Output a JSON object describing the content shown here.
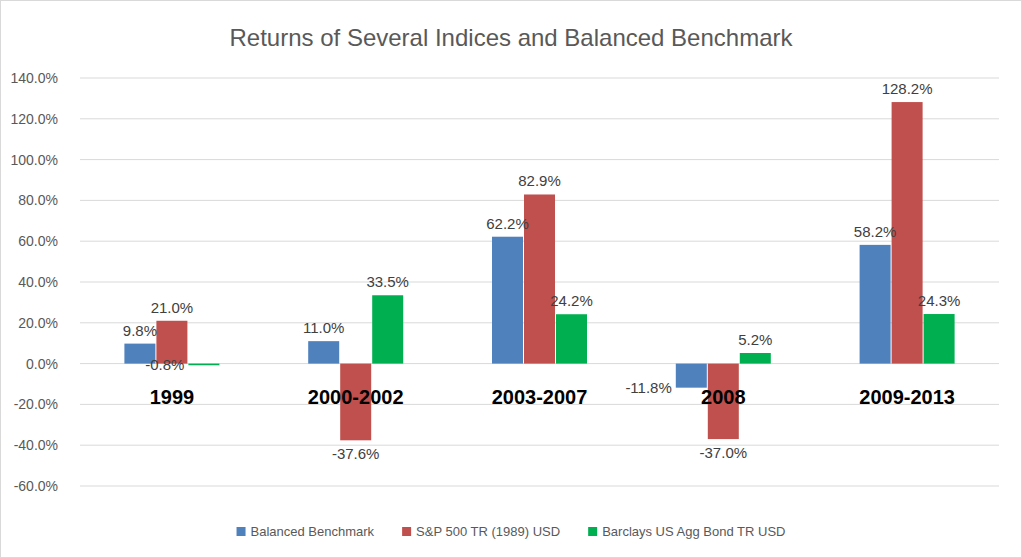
{
  "chart_data": {
    "type": "bar",
    "title": "Returns of Several Indices and Balanced Benchmark",
    "categories": [
      "1999",
      "2000-2002",
      "2003-2007",
      "2008",
      "2009-2013"
    ],
    "series": [
      {
        "name": "Balanced Benchmark",
        "color": "#4f81bd",
        "values": [
          9.8,
          11.0,
          62.2,
          -11.8,
          58.2
        ],
        "value_labels": [
          "9.8%",
          "11.0%",
          "62.2%",
          "-11.8%",
          "58.2%"
        ]
      },
      {
        "name": "S&P 500 TR (1989) USD",
        "color": "#c0504d",
        "values": [
          21.0,
          -37.6,
          82.9,
          -37.0,
          128.2
        ],
        "value_labels": [
          "21.0%",
          "-37.6%",
          "82.9%",
          "-37.0%",
          "128.2%"
        ]
      },
      {
        "name": "Barclays US Agg Bond TR USD",
        "color": "#00b050",
        "values": [
          -0.8,
          33.5,
          24.2,
          5.2,
          24.3
        ],
        "value_labels": [
          "-0.8%",
          "33.5%",
          "24.2%",
          "5.2%",
          "24.3%"
        ]
      }
    ],
    "ylim": [
      -60,
      140
    ],
    "yticks": [
      {
        "value": -60,
        "label": "-60.0%"
      },
      {
        "value": -40,
        "label": "-40.0%"
      },
      {
        "value": -20,
        "label": "-20.0%"
      },
      {
        "value": 0,
        "label": "0.0%"
      },
      {
        "value": 20,
        "label": "20.0%"
      },
      {
        "value": 40,
        "label": "40.0%"
      },
      {
        "value": 60,
        "label": "60.0%"
      },
      {
        "value": 80,
        "label": "80.0%"
      },
      {
        "value": 100,
        "label": "100.0%"
      },
      {
        "value": 120,
        "label": "120.0%"
      },
      {
        "value": 140,
        "label": "140.0%"
      }
    ],
    "grid": true,
    "legend": "bottom",
    "data_labels": true
  }
}
